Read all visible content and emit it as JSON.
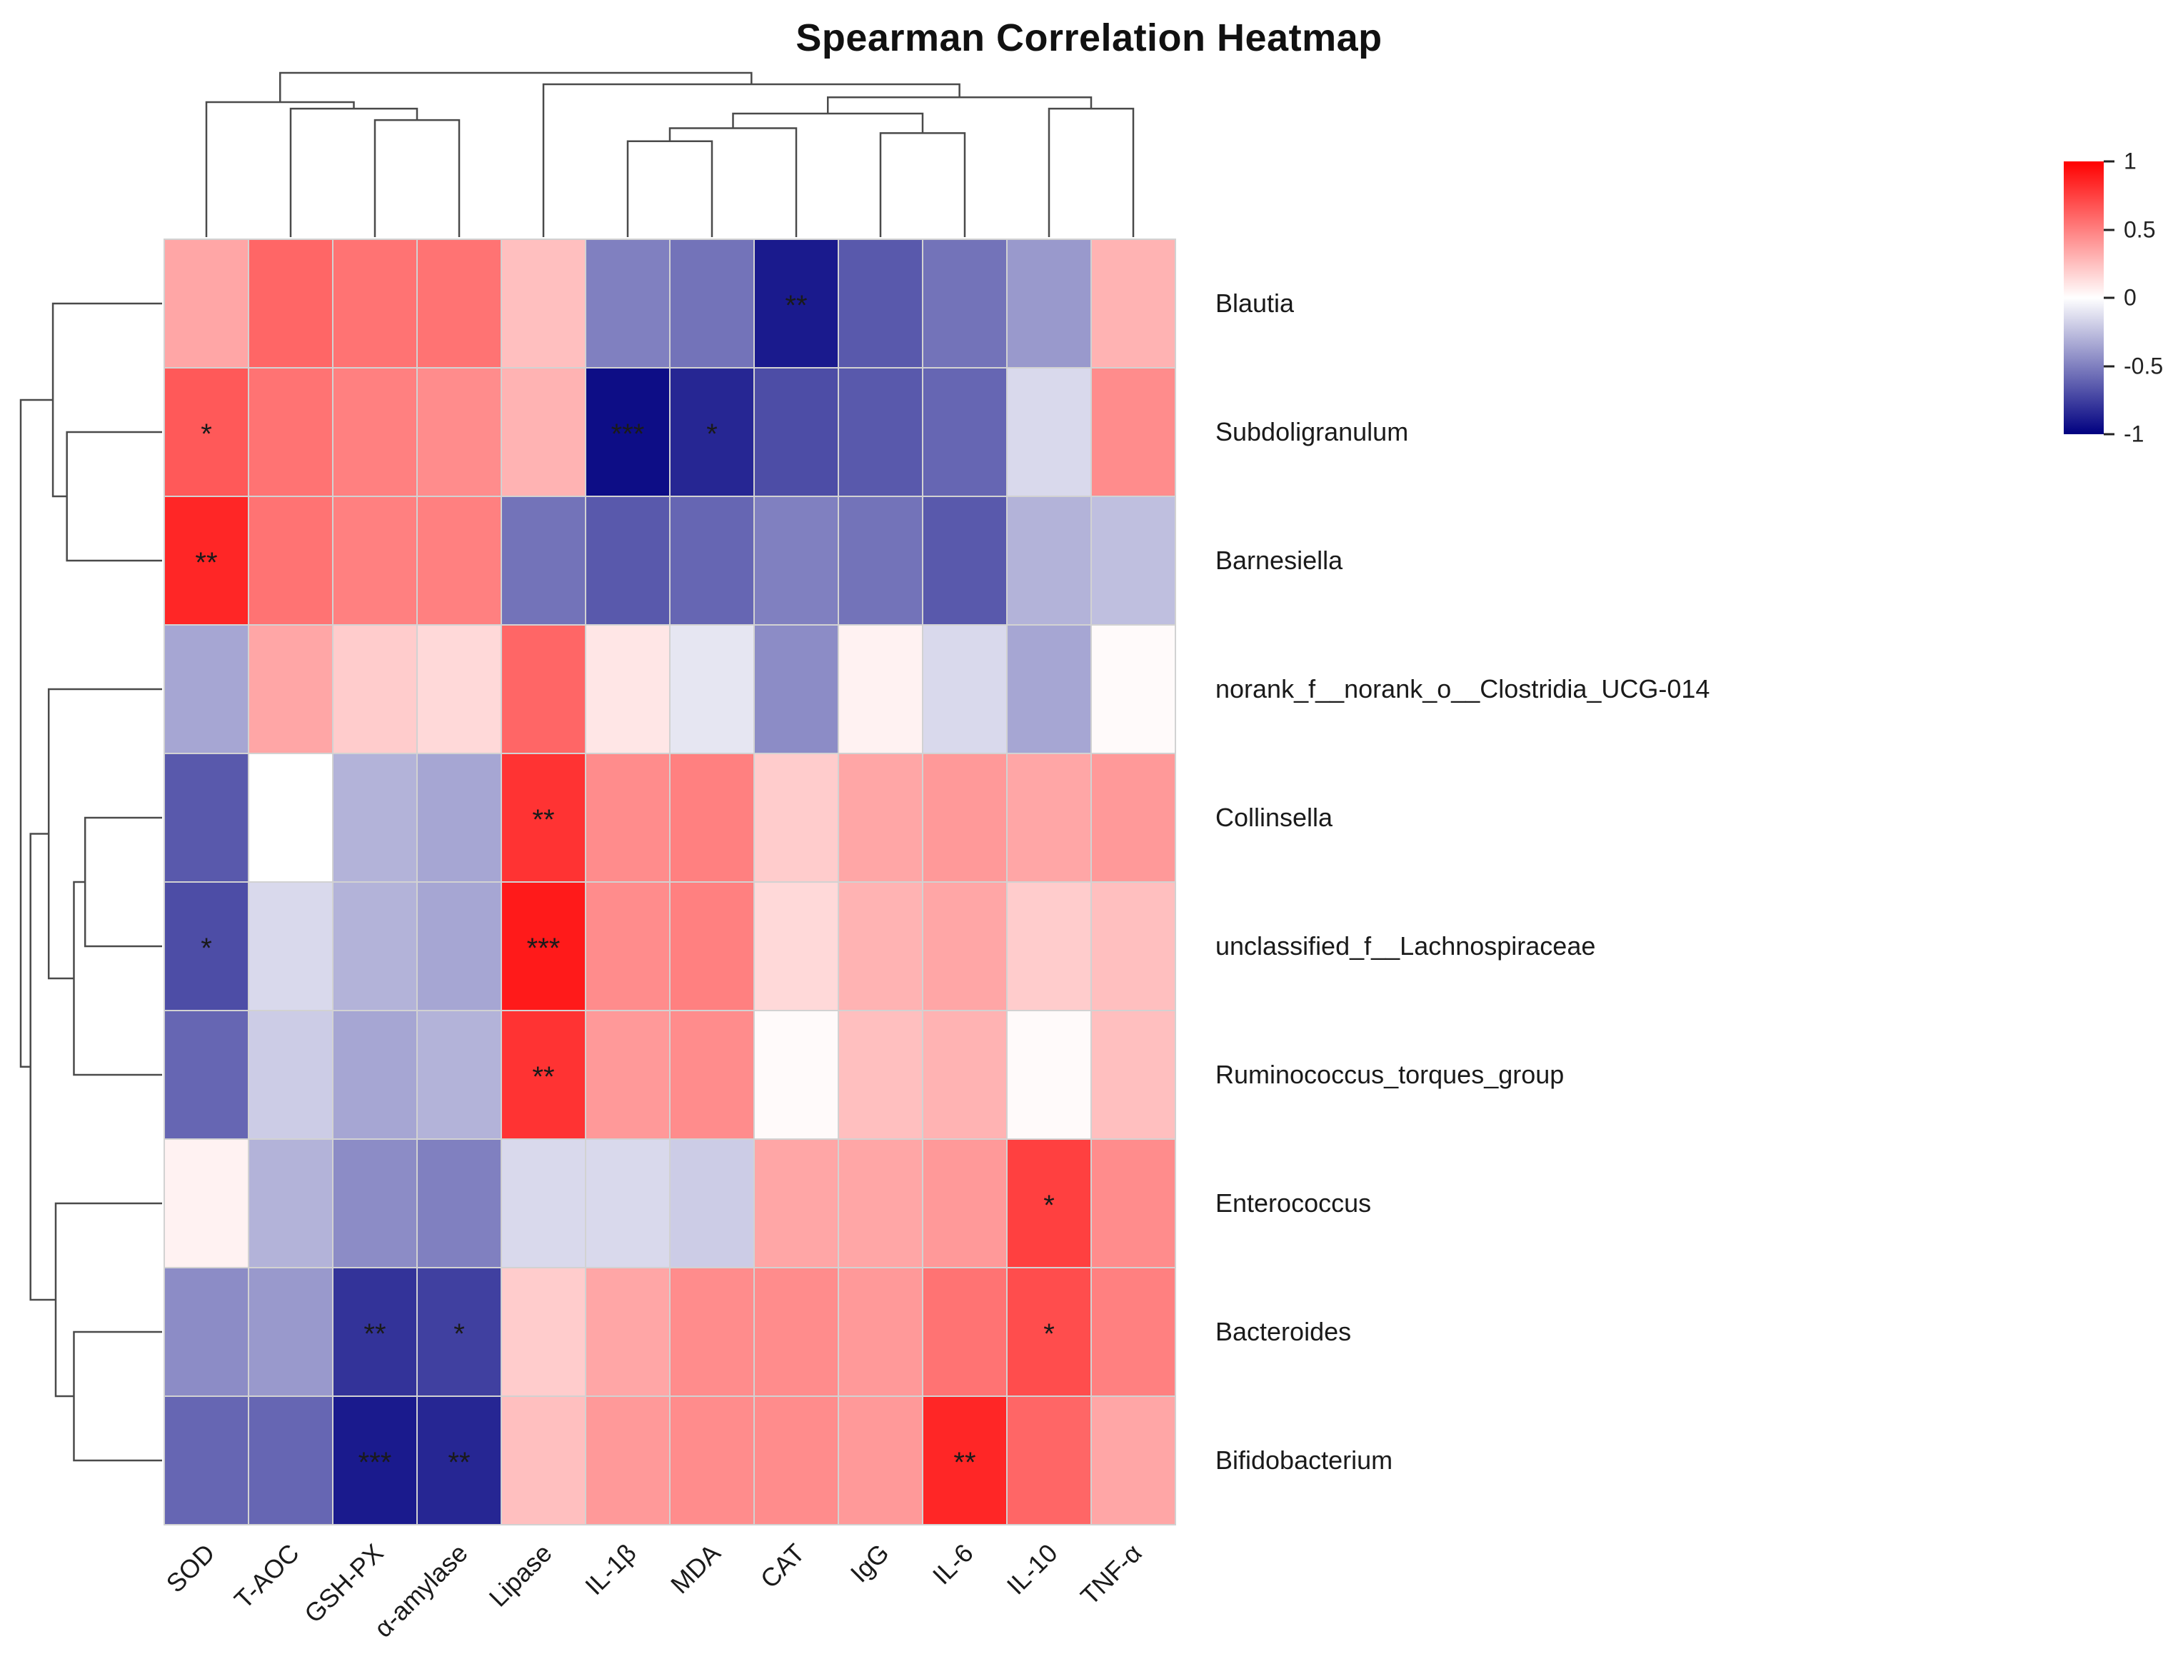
{
  "title": "Spearman Correlation Heatmap",
  "legend": {
    "ticks": [
      "1",
      "0.5",
      "0",
      "-0.5",
      "-1"
    ]
  },
  "chart_data": {
    "type": "heatmap",
    "title": "Spearman Correlation Heatmap",
    "columns": [
      "SOD",
      "T-AOC",
      "GSH-PX",
      "α-amylase",
      "Lipase",
      "IL-1β",
      "MDA",
      "CAT",
      "IgG",
      "IL-6",
      "IL-10",
      "TNF-α"
    ],
    "rows": [
      "Blautia",
      "Subdoligranulum",
      "Barnesiella",
      "norank_f__norank_o__Clostridia_UCG-014",
      "Collinsella",
      "unclassified_f__Lachnospiraceae",
      "Ruminococcus_torques_group",
      "Enterococcus",
      "Bacteroides",
      "Bifidobacterium"
    ],
    "values": [
      [
        0.35,
        0.6,
        0.55,
        0.55,
        0.25,
        -0.5,
        -0.55,
        -0.9,
        -0.65,
        -0.55,
        -0.4,
        0.3
      ],
      [
        0.65,
        0.55,
        0.5,
        0.45,
        0.3,
        -0.95,
        -0.85,
        -0.7,
        -0.65,
        -0.6,
        -0.15,
        0.45
      ],
      [
        0.85,
        0.55,
        0.5,
        0.5,
        -0.55,
        -0.65,
        -0.6,
        -0.5,
        -0.55,
        -0.65,
        -0.3,
        -0.25
      ],
      [
        -0.35,
        0.35,
        0.2,
        0.15,
        0.6,
        0.1,
        -0.1,
        -0.45,
        0.05,
        -0.15,
        -0.35,
        0.02
      ],
      [
        -0.65,
        0.0,
        -0.3,
        -0.35,
        0.8,
        0.45,
        0.5,
        0.2,
        0.35,
        0.4,
        0.35,
        0.4
      ],
      [
        -0.7,
        -0.15,
        -0.3,
        -0.35,
        0.9,
        0.45,
        0.5,
        0.15,
        0.3,
        0.35,
        0.2,
        0.25
      ],
      [
        -0.6,
        -0.2,
        -0.35,
        -0.3,
        0.8,
        0.4,
        0.45,
        0.02,
        0.25,
        0.3,
        0.02,
        0.25
      ],
      [
        0.05,
        -0.3,
        -0.45,
        -0.5,
        -0.15,
        -0.15,
        -0.2,
        0.35,
        0.35,
        0.4,
        0.75,
        0.45
      ],
      [
        -0.45,
        -0.4,
        -0.8,
        -0.75,
        0.2,
        0.35,
        0.45,
        0.45,
        0.4,
        0.55,
        0.7,
        0.5
      ],
      [
        -0.6,
        -0.6,
        -0.9,
        -0.85,
        0.25,
        0.4,
        0.45,
        0.45,
        0.4,
        0.85,
        0.6,
        0.35
      ]
    ],
    "significance": [
      [
        "",
        "",
        "",
        "",
        "",
        "",
        "",
        "**",
        "",
        "",
        "",
        ""
      ],
      [
        "*",
        "",
        "",
        "",
        "",
        "***",
        "*",
        "",
        "",
        "",
        "",
        ""
      ],
      [
        "**",
        "",
        "",
        "",
        "",
        "",
        "",
        "",
        "",
        "",
        "",
        ""
      ],
      [
        "",
        "",
        "",
        "",
        "",
        "",
        "",
        "",
        "",
        "",
        "",
        ""
      ],
      [
        "",
        "",
        "",
        "",
        "**",
        "",
        "",
        "",
        "",
        "",
        "",
        ""
      ],
      [
        "*",
        "",
        "",
        "",
        "***",
        "",
        "",
        "",
        "",
        "",
        "",
        ""
      ],
      [
        "",
        "",
        "",
        "",
        "**",
        "",
        "",
        "",
        "",
        "",
        "",
        ""
      ],
      [
        "",
        "",
        "",
        "",
        "",
        "",
        "",
        "",
        "",
        "",
        "*",
        ""
      ],
      [
        "",
        "",
        "**",
        "*",
        "",
        "",
        "",
        "",
        "",
        "",
        "*",
        ""
      ],
      [
        "",
        "",
        "***",
        "**",
        "",
        "",
        "",
        "",
        "",
        "**",
        "",
        ""
      ]
    ],
    "colorscale": {
      "positive": "#ff0000",
      "zero": "#ffffff",
      "negative": "#000080",
      "min": -1,
      "max": 1
    },
    "clustering": {
      "columns": {
        "h": 1.0,
        "c": [
          {
            "h": 0.82,
            "c": [
              {
                "leaf": 0
              },
              {
                "h": 0.78,
                "c": [
                  {
                    "leaf": 1
                  },
                  {
                    "h": 0.71,
                    "c": [
                      {
                        "leaf": 2
                      },
                      {
                        "leaf": 3
                      }
                    ]
                  }
                ]
              }
            ]
          },
          {
            "h": 0.93,
            "c": [
              {
                "leaf": 4
              },
              {
                "h": 0.85,
                "c": [
                  {
                    "h": 0.75,
                    "c": [
                      {
                        "h": 0.66,
                        "c": [
                          {
                            "h": 0.58,
                            "c": [
                              {
                                "leaf": 5
                              },
                              {
                                "leaf": 6
                              }
                            ]
                          },
                          {
                            "leaf": 7
                          }
                        ]
                      },
                      {
                        "h": 0.63,
                        "c": [
                          {
                            "leaf": 8
                          },
                          {
                            "leaf": 9
                          }
                        ]
                      }
                    ]
                  },
                  {
                    "h": 0.78,
                    "c": [
                      {
                        "leaf": 10
                      },
                      {
                        "leaf": 11
                      }
                    ]
                  }
                ]
              }
            ]
          }
        ]
      },
      "rows": {
        "h": 1.0,
        "c": [
          {
            "h": 0.77,
            "c": [
              {
                "leaf": 0
              },
              {
                "h": 0.67,
                "c": [
                  {
                    "leaf": 1
                  },
                  {
                    "leaf": 2
                  }
                ]
              }
            ]
          },
          {
            "h": 0.93,
            "c": [
              {
                "h": 0.8,
                "c": [
                  {
                    "leaf": 3
                  },
                  {
                    "h": 0.62,
                    "c": [
                      {
                        "h": 0.54,
                        "c": [
                          {
                            "leaf": 4
                          },
                          {
                            "leaf": 5
                          }
                        ]
                      },
                      {
                        "leaf": 6
                      }
                    ]
                  }
                ]
              },
              {
                "h": 0.75,
                "c": [
                  {
                    "leaf": 7
                  },
                  {
                    "h": 0.62,
                    "c": [
                      {
                        "leaf": 8
                      },
                      {
                        "leaf": 9
                      }
                    ]
                  }
                ]
              }
            ]
          }
        ]
      }
    }
  }
}
